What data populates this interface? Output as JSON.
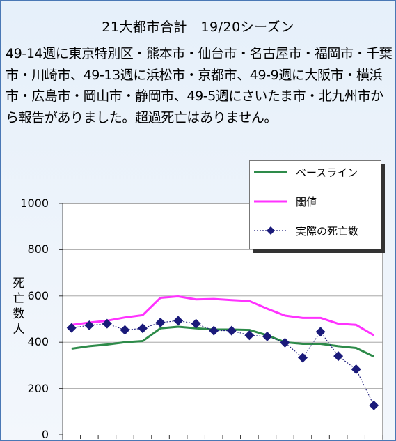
{
  "title": "21大都市合計　19/20シーズン",
  "description": "49-14週に東京特別区・熊本市・仙台市・名古屋市・福岡市・千葉市・川崎市、49-13週に浜松市・京都市、49-9週に大阪市・横浜市・広島市・岡山市・静岡市、49-5週にさいたま市・北九州市から報告がありました。超過死亡はありません。",
  "chart_data": {
    "type": "line",
    "ylabel": "死亡数人",
    "xlabel": "",
    "ylim": [
      0,
      1000
    ],
    "yticks": [
      0,
      200,
      400,
      600,
      800,
      1000
    ],
    "grid": true,
    "legend_position": "top-right",
    "x": [
      1,
      2,
      3,
      4,
      5,
      6,
      7,
      8,
      9,
      10,
      11,
      12,
      13,
      14,
      15,
      16,
      17,
      18
    ],
    "series": [
      {
        "name": "ベースライン",
        "color": "#2e8b4a",
        "style": "solid",
        "values": [
          372,
          383,
          390,
          400,
          405,
          460,
          467,
          460,
          455,
          455,
          453,
          430,
          400,
          393,
          393,
          383,
          375,
          338
        ]
      },
      {
        "name": "閾値",
        "color": "#ff33ff",
        "style": "solid",
        "values": [
          475,
          485,
          493,
          507,
          517,
          592,
          598,
          585,
          587,
          582,
          578,
          545,
          515,
          505,
          505,
          480,
          475,
          430
        ]
      },
      {
        "name": "実際の死亡数",
        "color": "#1a1a7a",
        "style": "dotted-diamond",
        "values": [
          462,
          473,
          480,
          453,
          460,
          485,
          493,
          480,
          450,
          450,
          430,
          425,
          398,
          333,
          445,
          340,
          283,
          127
        ]
      }
    ]
  }
}
